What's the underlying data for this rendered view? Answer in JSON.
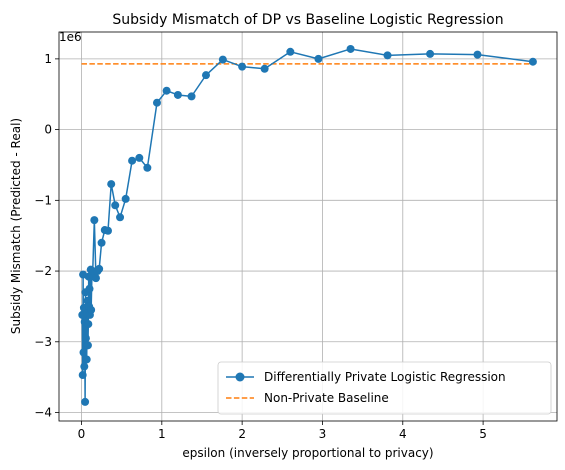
{
  "chart_data": {
    "type": "line",
    "title": "Subsidy Mismatch of DP vs Baseline Logistic Regression",
    "xlabel": "epsilon (inversely proportional to privacy)",
    "ylabel": "Subsidy Mismatch (Predicted - Real)",
    "offset_label": "1e6",
    "xlim": [
      -0.28,
      5.92
    ],
    "ylim": [
      -4.12,
      1.38
    ],
    "x_ticks": [
      0,
      1,
      2,
      3,
      4,
      5
    ],
    "x_tick_labels": [
      "0",
      "1",
      "2",
      "3",
      "4",
      "5"
    ],
    "y_ticks": [
      -4,
      -3,
      -2,
      -1,
      0,
      1
    ],
    "y_tick_labels": [
      "−4",
      "−3",
      "−2",
      "−1",
      "0",
      "1"
    ],
    "grid": true,
    "legend_position": "bottom-right",
    "series": [
      {
        "name": "Differentially Private Logistic Regression",
        "color": "#1f77b4",
        "style": "line-marker",
        "points": [
          [
            0.01,
            -2.62
          ],
          [
            0.015,
            -3.47
          ],
          [
            0.02,
            -2.05
          ],
          [
            0.025,
            -3.15
          ],
          [
            0.03,
            -2.52
          ],
          [
            0.035,
            -3.35
          ],
          [
            0.04,
            -2.72
          ],
          [
            0.045,
            -3.85
          ],
          [
            0.05,
            -2.3
          ],
          [
            0.055,
            -2.95
          ],
          [
            0.06,
            -2.55
          ],
          [
            0.065,
            -3.25
          ],
          [
            0.07,
            -2.6
          ],
          [
            0.075,
            -2.42
          ],
          [
            0.08,
            -3.05
          ],
          [
            0.085,
            -2.75
          ],
          [
            0.09,
            -2.08
          ],
          [
            0.095,
            -2.5
          ],
          [
            0.1,
            -2.25
          ],
          [
            0.105,
            -2.62
          ],
          [
            0.11,
            -2.08
          ],
          [
            0.115,
            -1.98
          ],
          [
            0.12,
            -2.55
          ],
          [
            0.13,
            -2.05
          ],
          [
            0.14,
            -2.0
          ],
          [
            0.16,
            -1.28
          ],
          [
            0.18,
            -2.1
          ],
          [
            0.2,
            -2.0
          ],
          [
            0.22,
            -1.97
          ],
          [
            0.25,
            -1.6
          ],
          [
            0.29,
            -1.42
          ],
          [
            0.33,
            -1.43
          ],
          [
            0.37,
            -0.77
          ],
          [
            0.42,
            -1.07
          ],
          [
            0.48,
            -1.24
          ],
          [
            0.55,
            -0.98
          ],
          [
            0.63,
            -0.44
          ],
          [
            0.72,
            -0.4
          ],
          [
            0.82,
            -0.54
          ],
          [
            0.94,
            0.38
          ],
          [
            1.06,
            0.55
          ],
          [
            1.2,
            0.49
          ],
          [
            1.37,
            0.47
          ],
          [
            1.55,
            0.77
          ],
          [
            1.76,
            0.99
          ],
          [
            2.0,
            0.89
          ],
          [
            2.28,
            0.86
          ],
          [
            2.6,
            1.1
          ],
          [
            2.95,
            1.0
          ],
          [
            3.35,
            1.14
          ],
          [
            3.81,
            1.05
          ],
          [
            4.34,
            1.07
          ],
          [
            4.93,
            1.06
          ],
          [
            5.62,
            0.96
          ]
        ]
      },
      {
        "name": "Non-Private Baseline",
        "color": "#ff7f0e",
        "style": "dashed",
        "y": 0.93,
        "x_range": [
          0.0,
          5.62
        ]
      }
    ]
  }
}
